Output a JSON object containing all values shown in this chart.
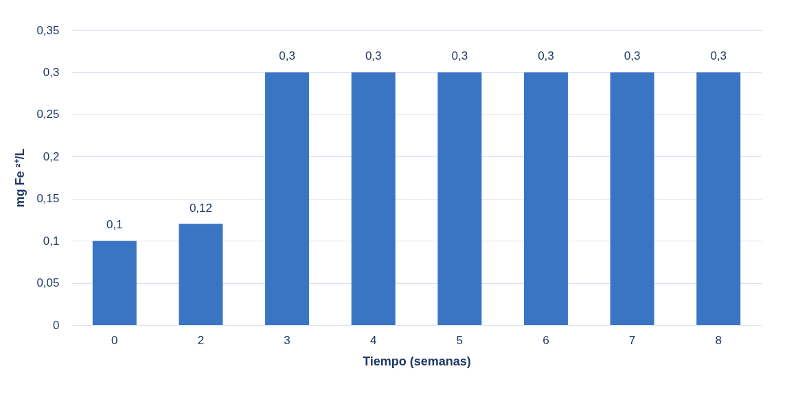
{
  "chart_data": {
    "type": "bar",
    "xlabel": "Tiempo (semanas)",
    "ylabel": "mg Fe ²⁺/L",
    "categories": [
      "0",
      "2",
      "3",
      "4",
      "5",
      "6",
      "7",
      "8"
    ],
    "values": [
      0.1,
      0.12,
      0.3,
      0.3,
      0.3,
      0.3,
      0.3,
      0.3
    ],
    "value_labels": [
      "0,1",
      "0,12",
      "0,3",
      "0,3",
      "0,3",
      "0,3",
      "0,3",
      "0,3"
    ],
    "color": "#3a75c4",
    "ylim": [
      0,
      0.35
    ],
    "yticks": [
      0,
      {
        "value": 0.05,
        "label": "0,05"
      },
      {
        "value": 0.1,
        "label": "0,1"
      },
      {
        "value": 0.15,
        "label": "0,15"
      },
      {
        "value": 0.2,
        "label": "0,2"
      },
      {
        "value": 0.25,
        "label": "0,25"
      },
      {
        "value": 0.3,
        "label": "0,3"
      },
      {
        "value": 0.35,
        "label": "0,35"
      }
    ],
    "grid": "y"
  }
}
